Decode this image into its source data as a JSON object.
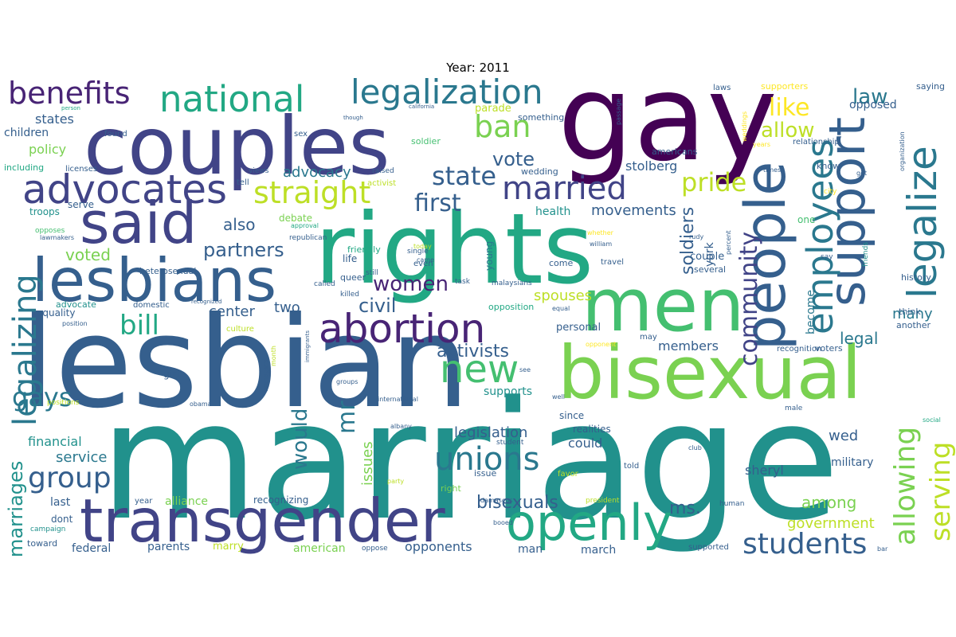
{
  "title": "Year: 2011",
  "palette": [
    "#440154",
    "#482475",
    "#414487",
    "#355f8d",
    "#2a788e",
    "#21918c",
    "#22a884",
    "#44bf70",
    "#7ad151",
    "#bddf26",
    "#fde725"
  ],
  "words": [
    {
      "text": "marriage",
      "c": 5
    },
    {
      "text": "lesbian",
      "c": 3
    },
    {
      "text": "gay",
      "c": 0
    },
    {
      "text": "rights",
      "c": 6
    },
    {
      "text": "couples",
      "c": 2
    },
    {
      "text": "bisexual",
      "c": 8
    },
    {
      "text": "men",
      "c": 7
    },
    {
      "text": "transgender",
      "c": 2
    },
    {
      "text": "lesbians",
      "c": 3
    },
    {
      "text": "said",
      "c": 2
    },
    {
      "text": "openly",
      "c": 6
    },
    {
      "text": "people",
      "c": 3
    },
    {
      "text": "support",
      "c": 3
    },
    {
      "text": "abortion",
      "c": 1
    },
    {
      "text": "advocates",
      "c": 2
    },
    {
      "text": "legalize",
      "c": 4
    },
    {
      "text": "employees",
      "c": 4
    },
    {
      "text": "legalizing",
      "c": 4
    },
    {
      "text": "national",
      "c": 6
    },
    {
      "text": "legalization",
      "c": 4
    },
    {
      "text": "married",
      "c": 2
    },
    {
      "text": "straight",
      "c": 9
    },
    {
      "text": "new",
      "c": 7
    },
    {
      "text": "benefits",
      "c": 1
    },
    {
      "text": "unions",
      "c": 4
    },
    {
      "text": "allowing",
      "c": 8
    },
    {
      "text": "serving",
      "c": 9
    },
    {
      "text": "group",
      "c": 3
    },
    {
      "text": "students",
      "c": 3
    },
    {
      "text": "pride",
      "c": 9
    },
    {
      "text": "community",
      "c": 2
    },
    {
      "text": "like",
      "c": 10
    },
    {
      "text": "ban",
      "c": 8
    },
    {
      "text": "state",
      "c": 3
    },
    {
      "text": "first",
      "c": 3
    },
    {
      "text": "gays",
      "c": 4
    },
    {
      "text": "bill",
      "c": 6
    },
    {
      "text": "women",
      "c": 1
    },
    {
      "text": "partners",
      "c": 3
    },
    {
      "text": "mr",
      "c": 4
    },
    {
      "text": "would",
      "c": 4
    },
    {
      "text": "law",
      "c": 4
    },
    {
      "text": "allow",
      "c": 9
    },
    {
      "text": "marriages",
      "c": 5
    },
    {
      "text": "civil",
      "c": 3
    },
    {
      "text": "activists",
      "c": 3
    },
    {
      "text": "vote",
      "c": 3
    },
    {
      "text": "soldiers",
      "c": 3
    },
    {
      "text": "legal",
      "c": 4
    },
    {
      "text": "ms.",
      "c": 3
    },
    {
      "text": "bisexuals",
      "c": 3
    },
    {
      "text": "voted",
      "c": 8
    },
    {
      "text": "also",
      "c": 3
    },
    {
      "text": "advocacy",
      "c": 4
    },
    {
      "text": "movements",
      "c": 3
    },
    {
      "text": "members",
      "c": 3
    },
    {
      "text": "spouses",
      "c": 9
    },
    {
      "text": "center",
      "c": 3
    },
    {
      "text": "many",
      "c": 4
    },
    {
      "text": "legislation",
      "c": 3
    },
    {
      "text": "wed",
      "c": 3
    },
    {
      "text": "policy",
      "c": 8
    },
    {
      "text": "service",
      "c": 4
    },
    {
      "text": "among",
      "c": 8
    },
    {
      "text": "government",
      "c": 9
    },
    {
      "text": "two",
      "c": 3
    },
    {
      "text": "could",
      "c": 3
    },
    {
      "text": "opponents",
      "c": 3
    },
    {
      "text": "issues",
      "c": 8
    },
    {
      "text": "financial",
      "c": 5
    },
    {
      "text": "stolberg",
      "c": 3
    },
    {
      "text": "sheryl",
      "c": 3
    },
    {
      "text": "military",
      "c": 3
    },
    {
      "text": "health",
      "c": 5
    },
    {
      "text": "york",
      "c": 3
    },
    {
      "text": "become",
      "c": 4
    },
    {
      "text": "states",
      "c": 3
    },
    {
      "text": "children",
      "c": 3
    },
    {
      "text": "opposed",
      "c": 3
    },
    {
      "text": "federal",
      "c": 3
    },
    {
      "text": "parents",
      "c": 3
    },
    {
      "text": "american",
      "c": 8
    },
    {
      "text": "alliance",
      "c": 8
    },
    {
      "text": "last",
      "c": 3
    },
    {
      "text": "march",
      "c": 3
    },
    {
      "text": "man",
      "c": 3
    },
    {
      "text": "supports",
      "c": 5
    },
    {
      "text": "couple",
      "c": 3
    },
    {
      "text": "personal",
      "c": 3
    },
    {
      "text": "recognizing",
      "c": 3
    },
    {
      "text": "dont",
      "c": 3
    },
    {
      "text": "young",
      "c": 4
    },
    {
      "text": "realities",
      "c": 3
    },
    {
      "text": "since",
      "c": 3
    },
    {
      "text": "marry",
      "c": 9
    },
    {
      "text": "parade",
      "c": 9
    },
    {
      "text": "debate",
      "c": 8
    },
    {
      "text": "equality",
      "c": 3
    },
    {
      "text": "life",
      "c": 3
    },
    {
      "text": "girl",
      "c": 3
    },
    {
      "text": "supporters",
      "c": 10
    },
    {
      "text": "saying",
      "c": 3
    },
    {
      "text": "troops",
      "c": 5
    },
    {
      "text": "serve",
      "c": 3
    },
    {
      "text": "including",
      "c": 6
    },
    {
      "text": "advocate",
      "c": 5
    },
    {
      "text": "heterosexual",
      "c": 3
    },
    {
      "text": "republican",
      "c": 3
    },
    {
      "text": "friendly",
      "c": 6
    },
    {
      "text": "queer",
      "c": 3
    },
    {
      "text": "opposition",
      "c": 6
    },
    {
      "text": "several",
      "c": 3
    },
    {
      "text": "come",
      "c": 3
    },
    {
      "text": "wedding",
      "c": 3
    },
    {
      "text": "americans",
      "c": 3
    },
    {
      "text": "something",
      "c": 3
    },
    {
      "text": "soldier",
      "c": 7
    },
    {
      "text": "know",
      "c": 3
    },
    {
      "text": "one",
      "c": 7
    },
    {
      "text": "think",
      "c": 3
    },
    {
      "text": "another",
      "c": 3
    },
    {
      "text": "history",
      "c": 3
    },
    {
      "text": "voters",
      "c": 3
    },
    {
      "text": "recognition",
      "c": 3
    },
    {
      "text": "right",
      "c": 8
    },
    {
      "text": "issue",
      "c": 3
    },
    {
      "text": "sex",
      "c": 3
    },
    {
      "text": "found",
      "c": 3
    },
    {
      "text": "views",
      "c": 3
    },
    {
      "text": "licenses",
      "c": 3
    },
    {
      "text": "tell",
      "c": 3
    },
    {
      "text": "raised",
      "c": 3
    },
    {
      "text": "activist",
      "c": 9
    },
    {
      "text": "even",
      "c": 3
    },
    {
      "text": "single",
      "c": 3
    },
    {
      "text": "killed",
      "c": 3
    },
    {
      "text": "called",
      "c": 3
    },
    {
      "text": "domestic",
      "c": 3
    },
    {
      "text": "task",
      "c": 3
    },
    {
      "text": "malaysians",
      "c": 3
    },
    {
      "text": "travel",
      "c": 3
    },
    {
      "text": "may",
      "c": 3
    },
    {
      "text": "told",
      "c": 3
    },
    {
      "text": "favor",
      "c": 9
    },
    {
      "text": "oppose",
      "c": 3
    },
    {
      "text": "supported",
      "c": 3
    },
    {
      "text": "human",
      "c": 3
    },
    {
      "text": "president",
      "c": 9
    },
    {
      "text": "club",
      "c": 3
    },
    {
      "text": "male",
      "c": 3
    },
    {
      "text": "student",
      "c": 3
    },
    {
      "text": "year",
      "c": 3
    },
    {
      "text": "campaign",
      "c": 5
    },
    {
      "text": "toward",
      "c": 3
    },
    {
      "text": "positions",
      "c": 9
    },
    {
      "text": "obama",
      "c": 3
    },
    {
      "text": "international",
      "c": 3
    },
    {
      "text": "well",
      "c": 3
    },
    {
      "text": "see",
      "c": 3
    },
    {
      "text": "groups",
      "c": 3
    },
    {
      "text": "culture",
      "c": 9
    },
    {
      "text": "month",
      "c": 9
    },
    {
      "text": "opponent",
      "c": 10
    },
    {
      "text": "equal",
      "c": 3
    },
    {
      "text": "teenagers",
      "c": 3
    },
    {
      "text": "immigrants",
      "c": 3
    },
    {
      "text": "recognized",
      "c": 3
    },
    {
      "text": "position",
      "c": 3
    },
    {
      "text": "opposes",
      "c": 7
    },
    {
      "text": "lawmakers",
      "c": 3
    },
    {
      "text": "approval",
      "c": 6
    },
    {
      "text": "today",
      "c": 9
    },
    {
      "text": "came",
      "c": 3
    },
    {
      "text": "booed",
      "c": 3
    },
    {
      "text": "damascus",
      "c": 3
    },
    {
      "text": "albany",
      "c": 3
    },
    {
      "text": "party",
      "c": 9
    },
    {
      "text": "social",
      "c": 6
    },
    {
      "text": "bar",
      "c": 3
    },
    {
      "text": "friends",
      "c": 5
    },
    {
      "text": "say",
      "c": 3
    },
    {
      "text": "percent",
      "c": 3
    },
    {
      "text": "rudy",
      "c": 3
    },
    {
      "text": "william",
      "c": 3
    },
    {
      "text": "whether",
      "c": 10
    },
    {
      "text": "still",
      "c": 3
    },
    {
      "text": "city",
      "c": 10
    },
    {
      "text": "times",
      "c": 3
    },
    {
      "text": "years",
      "c": 10
    },
    {
      "text": "weddings",
      "c": 10
    },
    {
      "text": "get",
      "c": 3
    },
    {
      "text": "organization",
      "c": 3
    },
    {
      "text": "relationship",
      "c": 3
    },
    {
      "text": "laws",
      "c": 3
    },
    {
      "text": "passage",
      "c": 3
    },
    {
      "text": "though",
      "c": 3
    },
    {
      "text": "california",
      "c": 3
    },
    {
      "text": "person",
      "c": 6
    }
  ]
}
